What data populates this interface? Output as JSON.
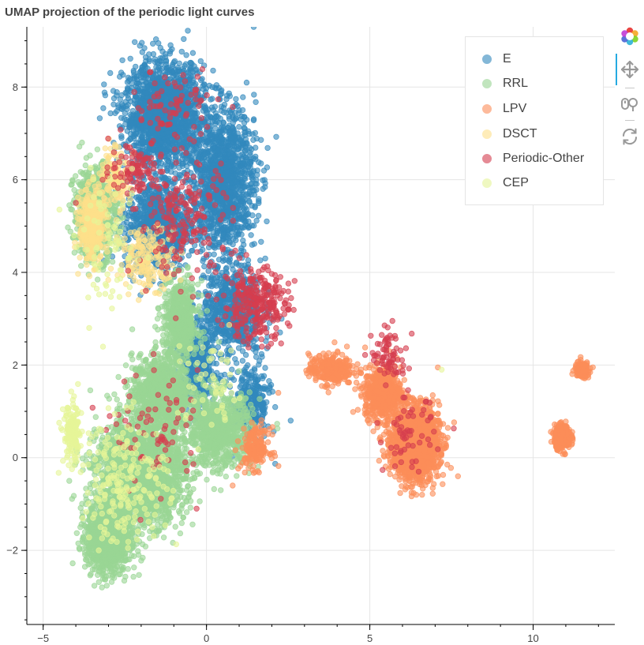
{
  "chart_data": {
    "type": "scatter",
    "title": "UMAP projection of the periodic light curves",
    "xlabel": "",
    "ylabel": "",
    "xlim": [
      -5.5,
      12.5
    ],
    "ylim": [
      -3.6,
      9.3
    ],
    "x_ticks": [
      -5,
      0,
      5,
      10
    ],
    "y_ticks": [
      -2,
      0,
      2,
      4,
      6,
      8
    ],
    "grid": true,
    "legend_position": "top-right",
    "series": [
      {
        "name": "E",
        "color": "#3288bd",
        "n": 5200,
        "blobs": [
          [
            -1.3,
            7.4,
            1.1,
            1.0,
            4
          ],
          [
            0.5,
            6.0,
            0.9,
            1.4,
            3
          ],
          [
            -1.5,
            5.0,
            0.9,
            0.9,
            2
          ],
          [
            0.8,
            3.2,
            0.8,
            0.9,
            1.5
          ],
          [
            -0.3,
            2.0,
            0.6,
            0.9,
            1
          ],
          [
            1.4,
            1.2,
            0.5,
            0.8,
            0.6
          ]
        ],
        "points": [
          [
            -1.8,
            8.4
          ],
          [
            -0.5,
            8.2
          ],
          [
            1.0,
            7.5
          ],
          [
            1.5,
            6.5
          ],
          [
            -2.6,
            6.9
          ],
          [
            -1.0,
            4.2
          ],
          [
            0.0,
            5.0
          ],
          [
            1.8,
            4.3
          ],
          [
            -0.9,
            2.3
          ],
          [
            2.3,
            3.0
          ],
          [
            -0.2,
            1.0
          ]
        ]
      },
      {
        "name": "RRL",
        "color": "#99d594",
        "n": 6800,
        "blobs": [
          [
            -2.0,
            -0.3,
            1.2,
            1.0,
            4
          ],
          [
            -3.0,
            -1.7,
            0.6,
            0.7,
            2
          ],
          [
            -1.4,
            1.4,
            0.8,
            0.7,
            1.5
          ],
          [
            -0.8,
            2.9,
            0.5,
            0.8,
            1
          ],
          [
            -3.4,
            5.3,
            0.6,
            0.9,
            1.2
          ],
          [
            0.4,
            0.6,
            0.9,
            0.7,
            1.5
          ]
        ],
        "points": [
          [
            -3.2,
            -2.8
          ],
          [
            -4.2,
            -0.5
          ],
          [
            -2.0,
            1.5
          ],
          [
            -1.5,
            -1.3
          ],
          [
            -0.3,
            0.9
          ],
          [
            0.9,
            0.2
          ],
          [
            -1.5,
            3.0
          ],
          [
            -3.8,
            5.8
          ]
        ]
      },
      {
        "name": "LPV",
        "color": "#fc8d59",
        "n": 3400,
        "blobs": [
          [
            6.4,
            0.3,
            0.65,
            0.7,
            4
          ],
          [
            5.4,
            1.4,
            0.5,
            0.5,
            1.5
          ],
          [
            3.8,
            1.9,
            0.6,
            0.3,
            0.7
          ],
          [
            10.9,
            0.45,
            0.22,
            0.22,
            1
          ],
          [
            11.5,
            1.9,
            0.2,
            0.15,
            0.4
          ],
          [
            1.5,
            0.2,
            0.4,
            0.4,
            0.4
          ]
        ],
        "points": [
          [
            7.7,
            -0.4
          ],
          [
            6.6,
            -0.8
          ],
          [
            5.6,
            2.3
          ],
          [
            4.3,
            2.4
          ],
          [
            11.1,
            0.3
          ],
          [
            11.6,
            2.0
          ],
          [
            2.2,
            1.4
          ],
          [
            0.8,
            -0.6
          ]
        ]
      },
      {
        "name": "DSCT",
        "color": "#fee08b",
        "n": 700,
        "blobs": [
          [
            -3.5,
            5.0,
            0.35,
            0.7,
            2
          ],
          [
            -1.8,
            4.3,
            0.8,
            0.6,
            1
          ],
          [
            -2.8,
            6.1,
            0.4,
            0.6,
            0.7
          ]
        ],
        "points": [
          [
            -3.5,
            4.7
          ],
          [
            -2.0,
            4.0
          ],
          [
            -3.0,
            6.0
          ]
        ]
      },
      {
        "name": "Periodic-Other",
        "color": "#d53e4f",
        "n": 850,
        "blobs": [
          [
            1.5,
            3.3,
            0.9,
            0.7,
            3
          ],
          [
            -0.7,
            5.2,
            1.3,
            1.2,
            2
          ],
          [
            -2.2,
            6.3,
            0.7,
            0.5,
            1
          ],
          [
            5.6,
            2.2,
            0.5,
            0.5,
            0.8
          ],
          [
            -1.5,
            0.5,
            1.2,
            1.2,
            0.8
          ],
          [
            -1.0,
            7.6,
            1.2,
            0.7,
            0.8
          ],
          [
            6.2,
            0.5,
            0.7,
            0.7,
            0.6
          ]
        ],
        "points": [
          [
            2.0,
            3.0
          ],
          [
            -4.0,
            5.5
          ],
          [
            -2.0,
            6.3
          ],
          [
            0.5,
            4.5
          ],
          [
            5.5,
            2.4
          ],
          [
            -1.0,
            5.0
          ],
          [
            2.5,
            3.2
          ]
        ]
      },
      {
        "name": "CEP",
        "color": "#e6f598",
        "n": 500,
        "blobs": [
          [
            -4.1,
            0.5,
            0.25,
            0.6,
            1.5
          ],
          [
            -2.5,
            -0.5,
            1.2,
            1.2,
            2
          ],
          [
            -3.0,
            4.5,
            0.9,
            1.3,
            0.7
          ],
          [
            0.2,
            1.5,
            1.0,
            1.0,
            0.5
          ]
        ],
        "points": [
          [
            -4.3,
            0.9
          ],
          [
            -3.3,
            -2.0
          ],
          [
            7.2,
            1.9
          ],
          [
            -2.5,
            0.0
          ]
        ]
      }
    ]
  },
  "toolbar": {
    "tools": [
      {
        "name": "bokeh-logo-icon"
      },
      {
        "name": "pan-icon"
      },
      {
        "name": "wheel-zoom-icon"
      },
      {
        "name": "reset-icon"
      }
    ]
  }
}
